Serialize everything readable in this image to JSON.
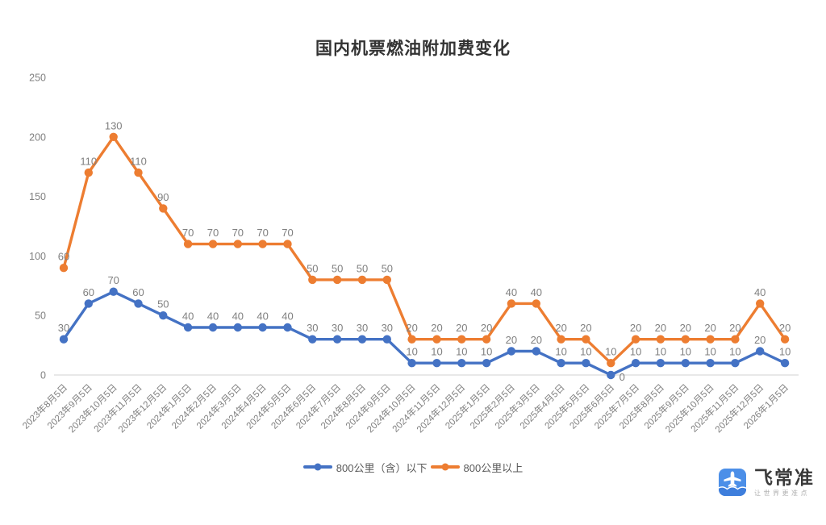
{
  "title": "国内机票燃油附加费变化",
  "chart_data": {
    "type": "line",
    "title": "国内机票燃油附加费变化",
    "x": [
      "2023年8月5日",
      "2023年9月5日",
      "2023年10月5日",
      "2023年11月5日",
      "2023年12月5日",
      "2024年1月5日",
      "2024年2月5日",
      "2024年3月5日",
      "2024年4月5日",
      "2024年5月5日",
      "2024年6月5日",
      "2024年7月5日",
      "2024年8月5日",
      "2024年9月5日",
      "2024年10月5日",
      "2024年11月5日",
      "2024年12月5日",
      "2025年1月5日",
      "2025年2月5日",
      "2025年3月5日",
      "2025年4月5日",
      "2025年5月5日",
      "2025年6月5日",
      "2025年7月5日",
      "2025年8月5日",
      "2025年9月5日",
      "2025年10月5日",
      "2025年11月5日",
      "2025年12月5日",
      "2026年1月5日"
    ],
    "series": [
      {
        "name": "800公里（含）以下",
        "color": "#4472C4",
        "values": [
          30,
          60,
          70,
          60,
          50,
          40,
          40,
          40,
          40,
          40,
          30,
          30,
          30,
          30,
          10,
          10,
          10,
          10,
          20,
          20,
          10,
          10,
          0,
          10,
          10,
          10,
          10,
          10,
          20,
          10
        ]
      },
      {
        "name": "800公里以上",
        "color": "#ED7D31",
        "values": [
          60,
          110,
          130,
          110,
          90,
          70,
          70,
          70,
          70,
          70,
          50,
          50,
          50,
          50,
          20,
          20,
          20,
          20,
          40,
          40,
          20,
          20,
          10,
          20,
          20,
          20,
          20,
          20,
          40,
          20
        ]
      }
    ],
    "stacked": true,
    "ylim": [
      0,
      250
    ],
    "yticks": [
      0,
      50,
      100,
      150,
      200,
      250
    ],
    "grid": false,
    "data_labels": true,
    "legend_position": "bottom",
    "label_color": "#808080",
    "axis_color": "#808080",
    "baseline_color": "#d9d9d9"
  },
  "branding": {
    "name": "飞常准",
    "tagline": "让世界更准点",
    "icon": "airplane-app-icon",
    "icon_color": "#4C8FE8",
    "cloud_color": "#3E7EDC"
  }
}
